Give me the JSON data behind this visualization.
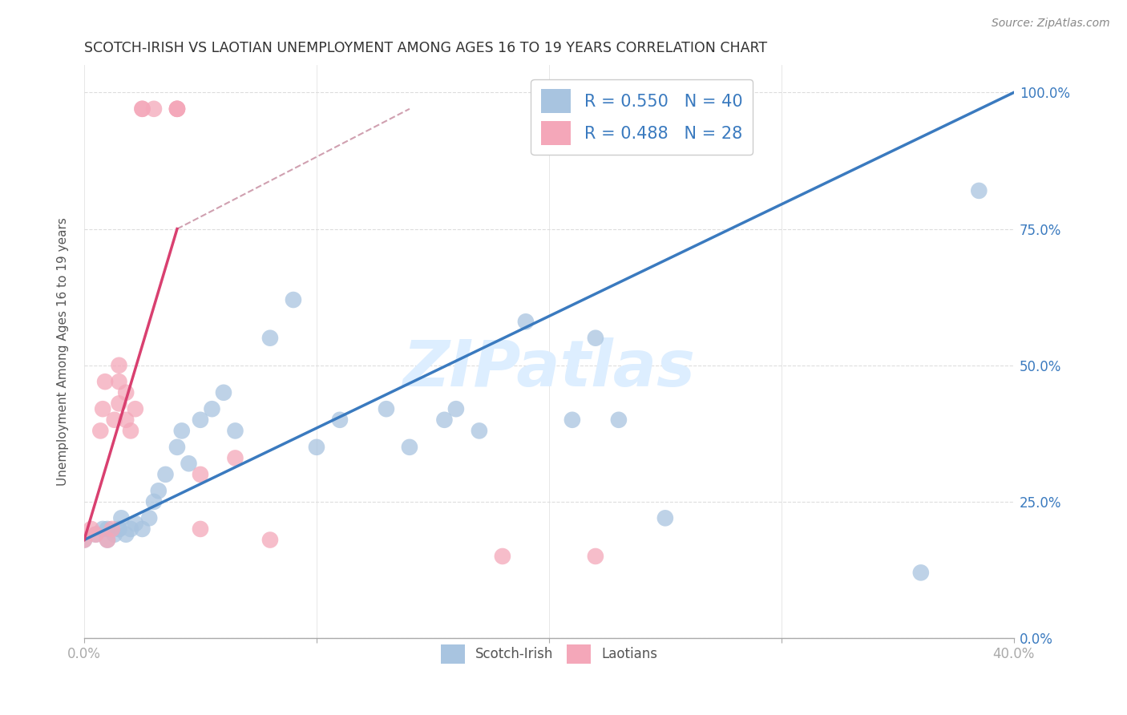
{
  "title": "SCOTCH-IRISH VS LAOTIAN UNEMPLOYMENT AMONG AGES 16 TO 19 YEARS CORRELATION CHART",
  "source": "Source: ZipAtlas.com",
  "ylabel": "Unemployment Among Ages 16 to 19 years",
  "xlim": [
    0.0,
    0.4
  ],
  "ylim": [
    0.0,
    1.05
  ],
  "x_ticks": [
    0.0,
    0.1,
    0.2,
    0.3,
    0.4
  ],
  "x_tick_labels_show": [
    "0.0%",
    "",
    "",
    "",
    "40.0%"
  ],
  "y_ticks": [
    0.0,
    0.25,
    0.5,
    0.75,
    1.0
  ],
  "scotch_irish_color": "#a8c4e0",
  "laotian_color": "#f4a7b9",
  "scotch_irish_line_color": "#3a7abf",
  "laotian_line_color": "#d94070",
  "laotian_trend_dashed_color": "#d0a0b0",
  "watermark_color": "#ddeeff",
  "scotch_irish_R": 0.55,
  "laotian_R": 0.488,
  "scotch_irish_N": 40,
  "laotian_N": 28,
  "scotch_irish_x": [
    0.0,
    0.005,
    0.008,
    0.01,
    0.01,
    0.013,
    0.015,
    0.015,
    0.016,
    0.018,
    0.02,
    0.022,
    0.025,
    0.028,
    0.03,
    0.032,
    0.035,
    0.04,
    0.042,
    0.045,
    0.05,
    0.055,
    0.06,
    0.065,
    0.08,
    0.09,
    0.1,
    0.11,
    0.13,
    0.14,
    0.155,
    0.16,
    0.17,
    0.19,
    0.21,
    0.22,
    0.23,
    0.25,
    0.36,
    0.385
  ],
  "scotch_irish_y": [
    0.18,
    0.19,
    0.2,
    0.2,
    0.18,
    0.19,
    0.2,
    0.2,
    0.22,
    0.19,
    0.2,
    0.21,
    0.2,
    0.22,
    0.25,
    0.27,
    0.3,
    0.35,
    0.38,
    0.32,
    0.4,
    0.42,
    0.45,
    0.38,
    0.55,
    0.62,
    0.35,
    0.4,
    0.42,
    0.35,
    0.4,
    0.42,
    0.38,
    0.58,
    0.4,
    0.55,
    0.4,
    0.22,
    0.12,
    0.82
  ],
  "laotian_x": [
    0.0,
    0.003,
    0.005,
    0.007,
    0.008,
    0.009,
    0.01,
    0.012,
    0.013,
    0.015,
    0.015,
    0.015,
    0.018,
    0.018,
    0.02,
    0.022,
    0.025,
    0.025,
    0.03,
    0.04,
    0.04,
    0.04,
    0.05,
    0.05,
    0.065,
    0.08,
    0.18,
    0.22
  ],
  "laotian_y": [
    0.18,
    0.2,
    0.19,
    0.38,
    0.42,
    0.47,
    0.18,
    0.2,
    0.4,
    0.43,
    0.47,
    0.5,
    0.4,
    0.45,
    0.38,
    0.42,
    0.97,
    0.97,
    0.97,
    0.97,
    0.97,
    0.97,
    0.2,
    0.3,
    0.33,
    0.18,
    0.15,
    0.15
  ],
  "background_color": "#ffffff",
  "grid_color": "#dddddd"
}
